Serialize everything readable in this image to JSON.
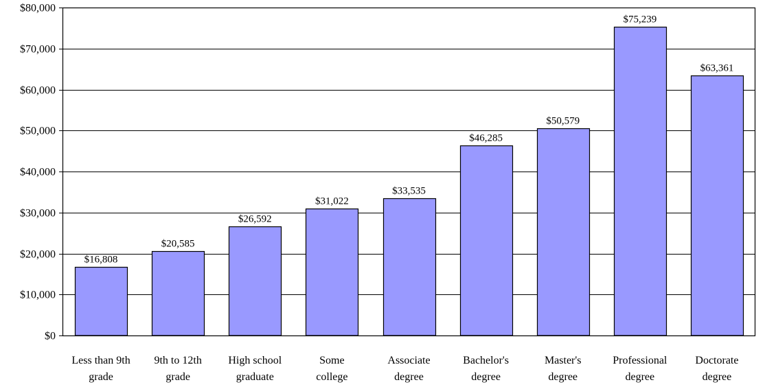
{
  "chart_data": {
    "type": "bar",
    "title": "",
    "xlabel": "",
    "ylabel": "",
    "ylim": [
      0,
      80000
    ],
    "y_ticks": [
      0,
      10000,
      20000,
      30000,
      40000,
      50000,
      60000,
      70000,
      80000
    ],
    "y_tick_labels": [
      "$0",
      "$10,000",
      "$20,000",
      "$30,000",
      "$40,000",
      "$50,000",
      "$60,000",
      "$70,000",
      "$80,000"
    ],
    "grid": "horizontal",
    "legend": "none",
    "categories": [
      [
        "Less than 9th",
        "grade"
      ],
      [
        "9th to 12th",
        "grade"
      ],
      [
        "High school",
        "graduate"
      ],
      [
        "Some",
        "college"
      ],
      [
        "Associate",
        "degree"
      ],
      [
        "Bachelor's",
        "degree"
      ],
      [
        "Master's",
        "degree"
      ],
      [
        "Professional",
        "degree"
      ],
      [
        "Doctorate",
        "degree"
      ]
    ],
    "values": [
      16808,
      20585,
      26592,
      31022,
      33535,
      46285,
      50579,
      75239,
      63361
    ],
    "data_labels": [
      "$16,808",
      "$20,585",
      "$26,592",
      "$31,022",
      "$33,535",
      "$46,285",
      "$50,579",
      "$75,239",
      "$63,361"
    ],
    "colors": {
      "bar_fill": "#9999ff",
      "bar_stroke": "#000000",
      "grid": "#000000",
      "axis": "#000000"
    }
  }
}
